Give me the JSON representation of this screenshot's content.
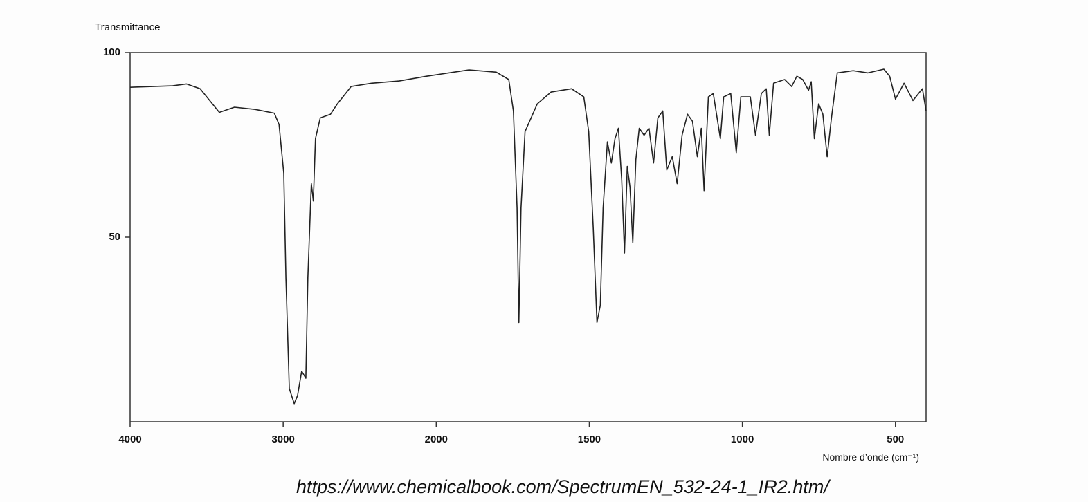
{
  "chart_data": {
    "type": "line",
    "y_label": "Transmittance",
    "x_label": "Nombre d’onde (cm⁻¹)",
    "source": "https://www.chemicalbook.com/SpectrumEN_532-24-1_IR2.htm/",
    "color": "#222222",
    "xlim": [
      4000,
      400
    ],
    "xticks": [
      4000,
      3000,
      2000,
      1500,
      1000,
      500
    ],
    "ylim": [
      0,
      100
    ],
    "yticks": [
      50,
      100
    ],
    "x": [
      4000,
      3722,
      3632,
      3543,
      3417,
      3318,
      3184,
      3058,
      3027,
      2996,
      2982,
      2960,
      2928,
      2906,
      2879,
      2852,
      2839,
      2816,
      2803,
      2789,
      2758,
      2691,
      2646,
      2556,
      2422,
      2242,
      2063,
      1893,
      1804,
      1763,
      1748,
      1736,
      1730,
      1723,
      1710,
      1670,
      1625,
      1558,
      1518,
      1502,
      1487,
      1475,
      1464,
      1455,
      1441,
      1428,
      1416,
      1405,
      1394,
      1385,
      1376,
      1367,
      1358,
      1348,
      1337,
      1321,
      1305,
      1290,
      1276,
      1260,
      1247,
      1229,
      1213,
      1197,
      1179,
      1163,
      1147,
      1134,
      1125,
      1111,
      1095,
      1072,
      1061,
      1038,
      1020,
      1005,
      974,
      957,
      938,
      922,
      912,
      898,
      862,
      839,
      822,
      803,
      784,
      775,
      765,
      751,
      737,
      723,
      709,
      690,
      638,
      590,
      538,
      519,
      500,
      472,
      443,
      412,
      400
    ],
    "values": [
      90.6,
      91,
      91.5,
      90.2,
      83.8,
      85.2,
      84.6,
      83.6,
      80.5,
      67.3,
      39,
      9,
      4.9,
      7.1,
      13.7,
      11.8,
      39,
      64.5,
      59.8,
      76.7,
      82.3,
      83.3,
      86.1,
      90.8,
      91.7,
      92.3,
      93.6,
      95.3,
      94.7,
      92.7,
      84.2,
      57.9,
      26.9,
      57.9,
      78.6,
      86.1,
      89.3,
      90.2,
      88,
      78.6,
      52.3,
      26.9,
      31.6,
      57.9,
      75.8,
      70.1,
      76.7,
      79.5,
      65.4,
      45.7,
      69.2,
      63.5,
      48.5,
      71,
      79.5,
      77.6,
      79.5,
      70.1,
      82.3,
      84.2,
      68.2,
      71.8,
      64.5,
      77.6,
      83.3,
      81.4,
      71.8,
      79.5,
      62.6,
      88,
      88.9,
      76.7,
      88,
      88.9,
      72.9,
      88,
      88,
      77.6,
      88.9,
      90.2,
      77.6,
      91.7,
      92.7,
      90.8,
      93.6,
      92.7,
      89.8,
      92.1,
      76.7,
      86.1,
      83.3,
      71.8,
      82.3,
      94.5,
      95.1,
      94.5,
      95.5,
      93.6,
      87.4,
      91.7,
      87,
      90.2,
      84.2
    ]
  }
}
